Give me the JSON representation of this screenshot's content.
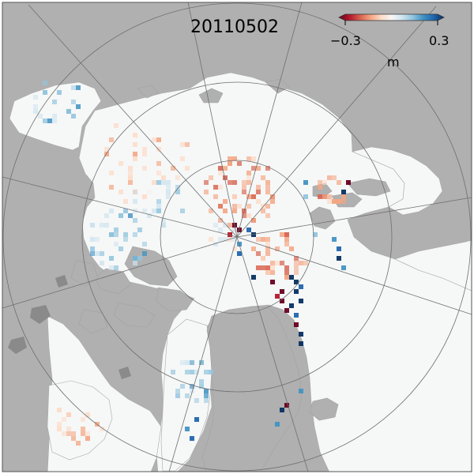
{
  "date": "20110502",
  "colorbar": {
    "min_label": "−0.3",
    "max_label": "0.3",
    "unit": "m",
    "stops": [
      "#67001f",
      "#b2182b",
      "#d6604d",
      "#f4a582",
      "#fddbc7",
      "#f7f7f7",
      "#d1e5f0",
      "#92c5de",
      "#4393c3",
      "#2166ac",
      "#053061"
    ]
  },
  "colors": {
    "land": "#b0b0b0",
    "land_edge": "#a2a2a2",
    "ocean": "#f6f7f7",
    "lakes": "#8a8a8a",
    "graticule": "#6f6f6f"
  }
}
